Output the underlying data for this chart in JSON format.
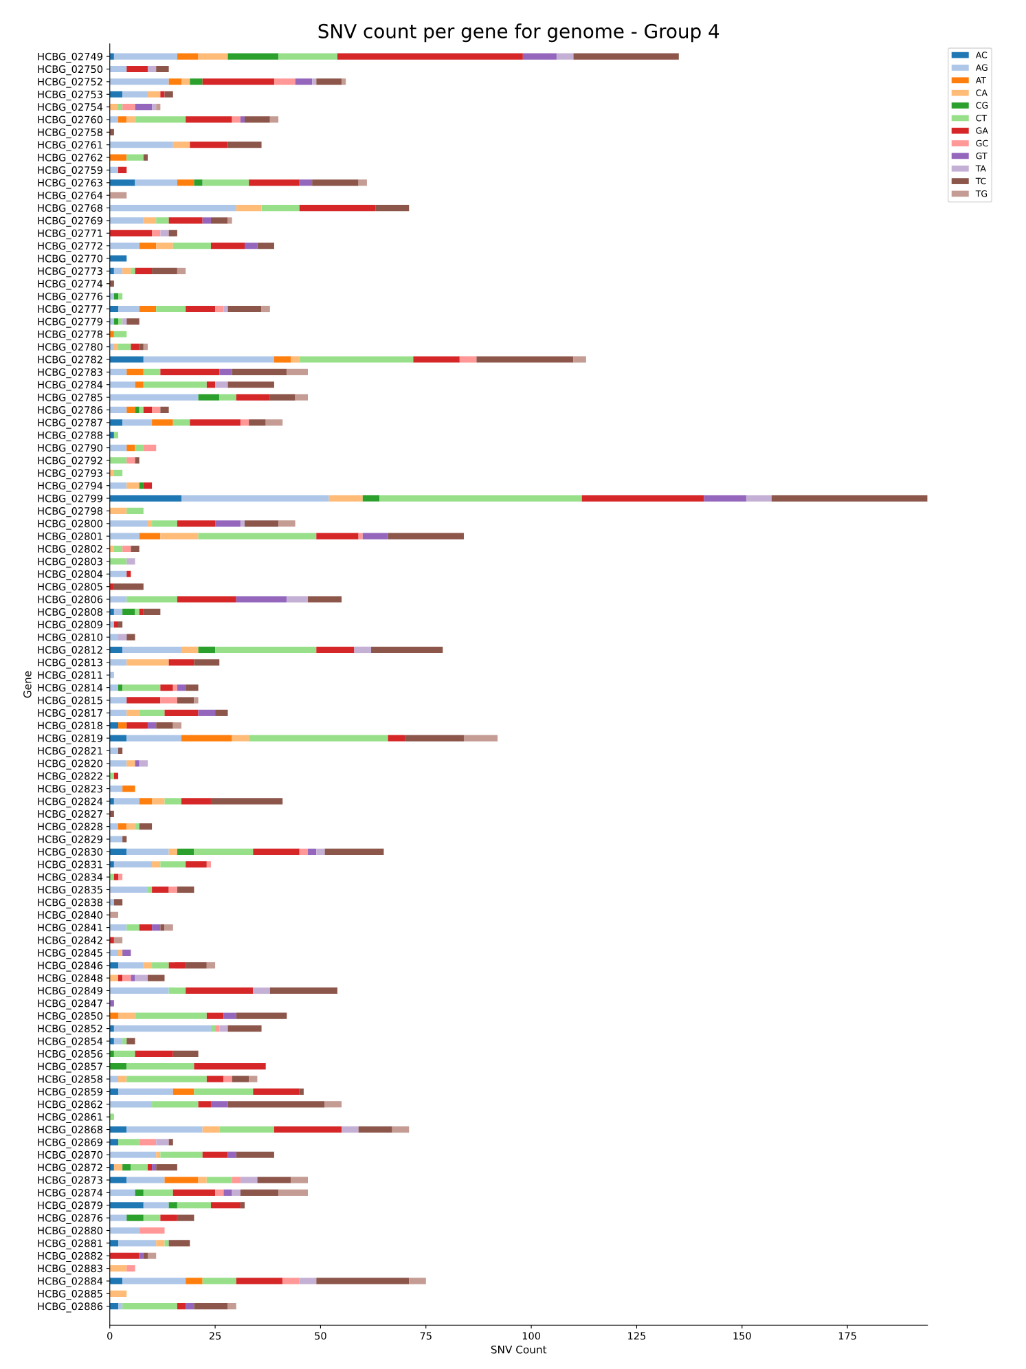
{
  "chart_data": {
    "type": "bar",
    "orientation": "horizontal",
    "stacked": true,
    "title": "SNV count per gene for genome - Group 4",
    "xlabel": "SNV Count",
    "ylabel": "Gene",
    "legend": "top right",
    "grid": false,
    "xlim": [
      0,
      194
    ],
    "xticks": [
      0,
      25,
      50,
      75,
      100,
      125,
      150,
      175
    ],
    "categories": [
      "HCBG_02749",
      "HCBG_02750",
      "HCBG_02752",
      "HCBG_02753",
      "HCBG_02754",
      "HCBG_02760",
      "HCBG_02758",
      "HCBG_02761",
      "HCBG_02762",
      "HCBG_02759",
      "HCBG_02763",
      "HCBG_02764",
      "HCBG_02768",
      "HCBG_02769",
      "HCBG_02771",
      "HCBG_02772",
      "HCBG_02770",
      "HCBG_02773",
      "HCBG_02774",
      "HCBG_02776",
      "HCBG_02777",
      "HCBG_02779",
      "HCBG_02778",
      "HCBG_02780",
      "HCBG_02782",
      "HCBG_02783",
      "HCBG_02784",
      "HCBG_02785",
      "HCBG_02786",
      "HCBG_02787",
      "HCBG_02788",
      "HCBG_02790",
      "HCBG_02792",
      "HCBG_02793",
      "HCBG_02794",
      "HCBG_02799",
      "HCBG_02798",
      "HCBG_02800",
      "HCBG_02801",
      "HCBG_02802",
      "HCBG_02803",
      "HCBG_02804",
      "HCBG_02805",
      "HCBG_02806",
      "HCBG_02808",
      "HCBG_02809",
      "HCBG_02810",
      "HCBG_02812",
      "HCBG_02813",
      "HCBG_02811",
      "HCBG_02814",
      "HCBG_02815",
      "HCBG_02817",
      "HCBG_02818",
      "HCBG_02819",
      "HCBG_02821",
      "HCBG_02820",
      "HCBG_02822",
      "HCBG_02823",
      "HCBG_02824",
      "HCBG_02827",
      "HCBG_02828",
      "HCBG_02829",
      "HCBG_02830",
      "HCBG_02831",
      "HCBG_02834",
      "HCBG_02835",
      "HCBG_02838",
      "HCBG_02840",
      "HCBG_02841",
      "HCBG_02842",
      "HCBG_02845",
      "HCBG_02846",
      "HCBG_02848",
      "HCBG_02849",
      "HCBG_02847",
      "HCBG_02850",
      "HCBG_02852",
      "HCBG_02854",
      "HCBG_02856",
      "HCBG_02857",
      "HCBG_02858",
      "HCBG_02859",
      "HCBG_02862",
      "HCBG_02861",
      "HCBG_02868",
      "HCBG_02869",
      "HCBG_02870",
      "HCBG_02872",
      "HCBG_02873",
      "HCBG_02874",
      "HCBG_02879",
      "HCBG_02876",
      "HCBG_02880",
      "HCBG_02881",
      "HCBG_02882",
      "HCBG_02883",
      "HCBG_02884",
      "HCBG_02885",
      "HCBG_02886"
    ],
    "series": [
      {
        "name": "AC",
        "color": "#1f77b4",
        "values": [
          1,
          0,
          0,
          3,
          0,
          0,
          0,
          0,
          0,
          0,
          6,
          0,
          0,
          0,
          0,
          0,
          4,
          1,
          0,
          0,
          2,
          0,
          0,
          0,
          8,
          0,
          0,
          0,
          0,
          3,
          1,
          0,
          0,
          0,
          0,
          17,
          0,
          0,
          0,
          0,
          0,
          0,
          0,
          0,
          1,
          0,
          0,
          3,
          0,
          0,
          0,
          0,
          0,
          2,
          4,
          0,
          0,
          0,
          0,
          1,
          0,
          0,
          0,
          4,
          1,
          0,
          0,
          0,
          0,
          0,
          0,
          0,
          2,
          0,
          0,
          0,
          0,
          1,
          1,
          0,
          0,
          0,
          2,
          0,
          0,
          4,
          2,
          0,
          1,
          4,
          0,
          8,
          0,
          0,
          2,
          0,
          0,
          3,
          0,
          2
        ]
      },
      {
        "name": "AG",
        "color": "#aec7e8",
        "values": [
          15,
          4,
          14,
          6,
          0,
          2,
          0,
          15,
          0,
          2,
          10,
          0,
          30,
          8,
          0,
          7,
          0,
          2,
          0,
          1,
          5,
          1,
          0,
          1,
          31,
          4,
          6,
          21,
          4,
          7,
          0,
          4,
          0,
          0,
          4,
          35,
          0,
          9,
          7,
          0,
          0,
          4,
          0,
          4,
          2,
          1,
          2,
          14,
          4,
          1,
          2,
          4,
          4,
          0,
          13,
          2,
          4,
          0,
          3,
          6,
          0,
          2,
          3,
          10,
          9,
          0,
          9,
          1,
          0,
          4,
          0,
          2,
          6,
          0,
          14,
          0,
          0,
          23,
          2,
          0,
          0,
          2,
          13,
          10,
          0,
          18,
          0,
          11,
          0,
          9,
          6,
          6,
          4,
          7,
          9,
          0,
          0,
          15,
          0,
          1
        ]
      },
      {
        "name": "AT",
        "color": "#ff7f0e",
        "values": [
          5,
          0,
          3,
          0,
          0,
          2,
          0,
          0,
          4,
          0,
          4,
          0,
          0,
          0,
          0,
          4,
          0,
          0,
          0,
          0,
          4,
          0,
          1,
          0,
          4,
          4,
          2,
          0,
          2,
          5,
          0,
          2,
          0,
          0,
          0,
          0,
          0,
          0,
          5,
          0,
          0,
          0,
          0,
          0,
          0,
          0,
          0,
          0,
          0,
          0,
          0,
          0,
          0,
          2,
          12,
          0,
          0,
          0,
          3,
          3,
          0,
          2,
          0,
          0,
          0,
          0,
          0,
          0,
          0,
          0,
          0,
          0,
          0,
          0,
          0,
          0,
          2,
          0,
          0,
          0,
          0,
          0,
          5,
          0,
          0,
          0,
          0,
          0,
          0,
          8,
          0,
          0,
          0,
          0,
          0,
          0,
          0,
          4,
          0,
          0
        ]
      },
      {
        "name": "CA",
        "color": "#ffbb78",
        "values": [
          7,
          0,
          2,
          3,
          2,
          2,
          0,
          4,
          0,
          0,
          0,
          0,
          6,
          3,
          0,
          4,
          0,
          2,
          0,
          0,
          0,
          0,
          0,
          1,
          2,
          0,
          0,
          0,
          0,
          0,
          0,
          0,
          0,
          1,
          3,
          8,
          4,
          1,
          9,
          1,
          0,
          0,
          0,
          0,
          0,
          0,
          0,
          4,
          10,
          0,
          0,
          0,
          3,
          0,
          4,
          0,
          2,
          0,
          0,
          3,
          0,
          2,
          0,
          2,
          2,
          0,
          0,
          0,
          0,
          0,
          0,
          1,
          2,
          2,
          0,
          0,
          4,
          0,
          0,
          0,
          0,
          2,
          0,
          0,
          0,
          4,
          0,
          1,
          2,
          2,
          0,
          0,
          0,
          0,
          2,
          0,
          4,
          0,
          4,
          0
        ]
      },
      {
        "name": "CG",
        "color": "#2ca02c",
        "values": [
          12,
          0,
          3,
          0,
          0,
          0,
          0,
          0,
          0,
          0,
          2,
          0,
          0,
          0,
          0,
          0,
          0,
          0,
          0,
          1,
          0,
          1,
          0,
          0,
          0,
          0,
          0,
          5,
          1,
          0,
          0,
          0,
          0,
          0,
          1,
          4,
          0,
          0,
          0,
          0,
          0,
          0,
          0,
          0,
          3,
          0,
          0,
          4,
          0,
          0,
          1,
          0,
          0,
          0,
          0,
          0,
          0,
          0,
          0,
          0,
          0,
          0,
          0,
          4,
          0,
          0,
          0,
          0,
          0,
          0,
          0,
          0,
          0,
          0,
          0,
          0,
          0,
          0,
          0,
          1,
          4,
          0,
          0,
          0,
          0,
          0,
          0,
          0,
          2,
          0,
          2,
          2,
          4,
          0,
          0,
          0,
          0,
          0,
          0,
          0
        ]
      },
      {
        "name": "CT",
        "color": "#98df8a",
        "values": [
          14,
          0,
          0,
          0,
          1,
          12,
          0,
          0,
          4,
          0,
          11,
          0,
          9,
          3,
          0,
          9,
          0,
          1,
          0,
          1,
          7,
          1,
          3,
          3,
          27,
          4,
          15,
          4,
          1,
          4,
          1,
          2,
          4,
          2,
          0,
          48,
          4,
          6,
          28,
          2,
          4,
          0,
          0,
          12,
          1,
          0,
          0,
          24,
          0,
          0,
          9,
          0,
          6,
          0,
          33,
          0,
          0,
          1,
          0,
          4,
          0,
          1,
          0,
          14,
          6,
          1,
          1,
          0,
          0,
          3,
          0,
          0,
          4,
          0,
          4,
          0,
          17,
          1,
          1,
          5,
          16,
          19,
          14,
          11,
          1,
          13,
          5,
          10,
          4,
          6,
          7,
          8,
          4,
          0,
          1,
          0,
          0,
          8,
          0,
          13
        ]
      },
      {
        "name": "GA",
        "color": "#d62728",
        "values": [
          44,
          5,
          17,
          1,
          0,
          11,
          0,
          9,
          0,
          2,
          12,
          0,
          18,
          8,
          10,
          8,
          0,
          4,
          0,
          0,
          7,
          0,
          0,
          2,
          11,
          14,
          2,
          8,
          2,
          12,
          0,
          0,
          0,
          0,
          2,
          29,
          0,
          9,
          10,
          0,
          0,
          1,
          1,
          14,
          1,
          1,
          0,
          9,
          6,
          0,
          3,
          8,
          8,
          5,
          4,
          0,
          0,
          1,
          0,
          7,
          0,
          0,
          0,
          11,
          5,
          1,
          4,
          0,
          0,
          3,
          1,
          0,
          4,
          1,
          16,
          0,
          4,
          0,
          0,
          9,
          17,
          4,
          11,
          3,
          0,
          16,
          0,
          6,
          1,
          0,
          10,
          7,
          4,
          0,
          0,
          7,
          0,
          11,
          0,
          2
        ]
      },
      {
        "name": "GC",
        "color": "#ff9896",
        "values": [
          0,
          0,
          5,
          0,
          3,
          2,
          0,
          0,
          0,
          0,
          0,
          0,
          0,
          0,
          2,
          0,
          0,
          0,
          0,
          0,
          2,
          0,
          0,
          0,
          4,
          0,
          0,
          0,
          2,
          2,
          0,
          3,
          2,
          0,
          0,
          0,
          0,
          0,
          1,
          2,
          0,
          0,
          0,
          0,
          0,
          0,
          0,
          0,
          0,
          0,
          1,
          4,
          0,
          0,
          0,
          0,
          0,
          0,
          0,
          0,
          0,
          0,
          0,
          2,
          1,
          1,
          2,
          0,
          0,
          0,
          0,
          0,
          0,
          2,
          0,
          0,
          0,
          1,
          0,
          0,
          0,
          2,
          0,
          0,
          0,
          0,
          4,
          0,
          0,
          2,
          2,
          0,
          0,
          6,
          0,
          0,
          2,
          4,
          0,
          0
        ]
      },
      {
        "name": "GT",
        "color": "#9467bd",
        "values": [
          8,
          0,
          4,
          0,
          4,
          1,
          0,
          0,
          0,
          0,
          3,
          0,
          0,
          2,
          0,
          3,
          0,
          0,
          0,
          0,
          0,
          0,
          0,
          0,
          0,
          3,
          0,
          0,
          0,
          0,
          0,
          0,
          0,
          0,
          0,
          10,
          0,
          6,
          6,
          0,
          0,
          0,
          0,
          12,
          0,
          0,
          0,
          0,
          0,
          0,
          2,
          0,
          4,
          2,
          0,
          0,
          1,
          0,
          0,
          0,
          0,
          0,
          0,
          2,
          0,
          0,
          0,
          0,
          0,
          2,
          0,
          2,
          0,
          1,
          0,
          1,
          3,
          0,
          0,
          0,
          0,
          0,
          0,
          4,
          0,
          0,
          0,
          2,
          1,
          0,
          2,
          0,
          0,
          0,
          0,
          1,
          0,
          0,
          0,
          2
        ]
      },
      {
        "name": "TA",
        "color": "#c5b0d5",
        "values": [
          4,
          2,
          1,
          0,
          1,
          0,
          0,
          0,
          0,
          0,
          0,
          0,
          0,
          0,
          2,
          0,
          0,
          0,
          0,
          0,
          1,
          1,
          0,
          0,
          0,
          0,
          3,
          0,
          0,
          0,
          0,
          0,
          0,
          0,
          0,
          6,
          0,
          1,
          0,
          0,
          2,
          0,
          0,
          5,
          0,
          0,
          2,
          4,
          0,
          0,
          0,
          0,
          0,
          0,
          0,
          0,
          2,
          0,
          0,
          0,
          0,
          0,
          0,
          2,
          0,
          0,
          0,
          0,
          0,
          0,
          0,
          0,
          0,
          3,
          4,
          0,
          0,
          2,
          0,
          0,
          0,
          0,
          0,
          0,
          0,
          4,
          3,
          0,
          0,
          4,
          2,
          0,
          0,
          0,
          0,
          0,
          0,
          4,
          0,
          0
        ]
      },
      {
        "name": "TC",
        "color": "#8c564b",
        "values": [
          25,
          3,
          6,
          2,
          0,
          6,
          1,
          8,
          1,
          0,
          11,
          0,
          8,
          4,
          2,
          4,
          0,
          6,
          1,
          0,
          8,
          3,
          0,
          1,
          23,
          13,
          11,
          6,
          2,
          4,
          0,
          0,
          1,
          0,
          0,
          37,
          0,
          8,
          18,
          2,
          0,
          0,
          7,
          8,
          4,
          1,
          2,
          17,
          6,
          0,
          3,
          4,
          3,
          4,
          14,
          1,
          0,
          0,
          0,
          17,
          1,
          3,
          1,
          14,
          0,
          0,
          4,
          2,
          0,
          1,
          0,
          0,
          5,
          4,
          16,
          0,
          12,
          8,
          2,
          6,
          0,
          4,
          1,
          23,
          0,
          8,
          1,
          9,
          5,
          8,
          9,
          1,
          4,
          0,
          5,
          1,
          0,
          22,
          0,
          8
        ]
      },
      {
        "name": "TG",
        "color": "#c49c94",
        "values": [
          0,
          0,
          1,
          0,
          1,
          2,
          0,
          0,
          0,
          0,
          2,
          4,
          0,
          1,
          0,
          0,
          0,
          2,
          0,
          0,
          2,
          0,
          0,
          1,
          3,
          5,
          0,
          3,
          0,
          4,
          0,
          0,
          0,
          0,
          0,
          0,
          0,
          4,
          0,
          0,
          0,
          0,
          0,
          0,
          0,
          0,
          0,
          0,
          0,
          0,
          0,
          1,
          0,
          2,
          8,
          0,
          0,
          0,
          0,
          0,
          0,
          0,
          0,
          0,
          0,
          0,
          0,
          0,
          2,
          2,
          2,
          0,
          2,
          0,
          0,
          0,
          0,
          0,
          0,
          0,
          0,
          2,
          0,
          4,
          0,
          4,
          0,
          0,
          0,
          4,
          7,
          0,
          0,
          0,
          0,
          2,
          0,
          4,
          0,
          2
        ]
      }
    ]
  }
}
